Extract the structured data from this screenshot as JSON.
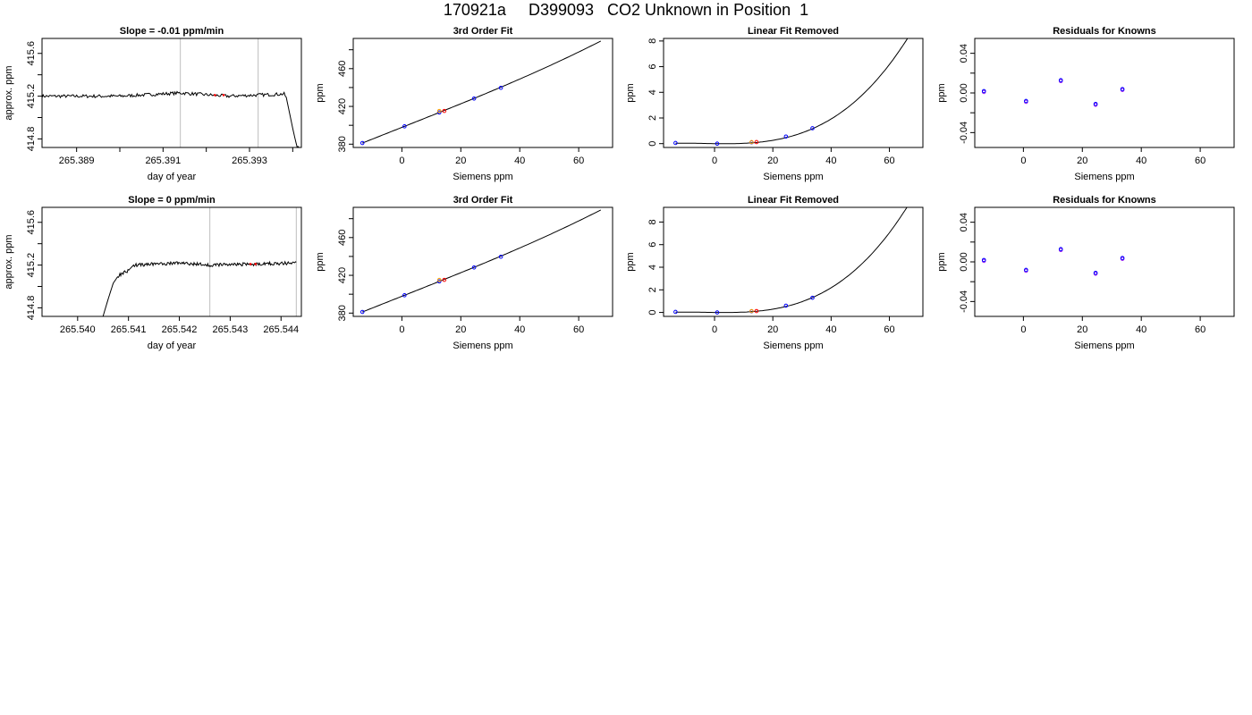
{
  "page_title": "170921a     D399093   CO2 Unknown in Position  1",
  "colors": {
    "line": "#000000",
    "known": "#0000ff",
    "unknown": "#ff0000",
    "unknown_fit": "#ffa500",
    "residual": "#a020f0",
    "marker_line": "#bebebe"
  },
  "chart_data": [
    {
      "type": "line",
      "title": "Slope =  -0.01  ppm/min",
      "xlabel": "day of year",
      "ylabel": "approx. ppm",
      "xlim": [
        265.3882,
        265.3942
      ],
      "ylim": [
        414.72,
        415.74
      ],
      "xticks": [
        265.388,
        265.389,
        265.39,
        265.391,
        265.392,
        265.393,
        265.394
      ],
      "xtick_labels": [
        "",
        "265.389",
        "",
        "265.391",
        "",
        "265.393",
        ""
      ],
      "yticks": [
        414.8,
        415.0,
        415.2,
        415.4,
        415.6
      ],
      "ytick_labels": [
        "414.8",
        "",
        "415.2",
        "",
        "415.6"
      ],
      "vlines": [
        265.3914,
        265.3932
      ],
      "trace": {
        "x_start": 265.3882,
        "x_end": 265.3942,
        "knots": [
          [
            265.3882,
            415.2
          ],
          [
            265.39,
            415.2
          ],
          [
            265.3914,
            415.23
          ],
          [
            265.3925,
            415.2
          ],
          [
            265.3938,
            415.22
          ],
          [
            265.39385,
            415.19
          ],
          [
            265.394,
            414.9
          ],
          [
            265.3941,
            414.72
          ]
        ]
      },
      "highlight_points": [
        [
          265.3922,
          415.21
        ],
        [
          265.3924,
          415.21
        ]
      ]
    },
    {
      "type": "scatter",
      "title": "3rd Order Fit",
      "xlabel": "Siemens ppm",
      "ylabel": "ppm",
      "xlim": [
        -16.5,
        71.5
      ],
      "ylim": [
        376.5,
        492
      ],
      "xticks": [
        0,
        20,
        40,
        60
      ],
      "yticks": [
        380,
        400,
        420,
        440,
        460,
        480
      ],
      "ytick_labels": [
        "380",
        "",
        "420",
        "",
        "460",
        ""
      ],
      "known_points": [
        [
          -13.4,
          381.2
        ],
        [
          0.9,
          398.9
        ],
        [
          12.7,
          413.6
        ],
        [
          24.5,
          428.3
        ],
        [
          33.6,
          439.7
        ]
      ],
      "unknown_points": [
        [
          14.4,
          415.2
        ]
      ],
      "fit": {
        "type": "poly3",
        "coef": [
          397.78,
          1.2375,
          5e-05,
          2.5e-05
        ],
        "x_range": [
          -13.4,
          67.5
        ]
      }
    },
    {
      "type": "scatter",
      "title": "Linear Fit Removed",
      "xlabel": "Siemens ppm",
      "ylabel": "ppm",
      "xlim": [
        -17.5,
        71.5
      ],
      "ylim": [
        -0.3,
        8.2
      ],
      "xticks": [
        0,
        20,
        40,
        60
      ],
      "yticks": [
        0,
        2,
        4,
        6,
        8
      ],
      "known_points": [
        [
          -13.4,
          0.05
        ],
        [
          0.9,
          0.0
        ],
        [
          12.7,
          0.1
        ],
        [
          24.5,
          0.55
        ],
        [
          33.6,
          1.2
        ]
      ],
      "unknown_points": [
        [
          14.4,
          0.12
        ]
      ],
      "fit": {
        "type": "poly3",
        "coef": [
          0.0,
          -0.003,
          0.0003,
          2.44e-05
        ],
        "x_range": [
          -13.4,
          68.0
        ]
      }
    },
    {
      "type": "scatter",
      "title": "Residuals for Knowns",
      "xlabel": "Siemens ppm",
      "ylabel": "ppm",
      "xlim": [
        -16.5,
        71.5
      ],
      "ylim": [
        -0.055,
        0.055
      ],
      "xticks": [
        0,
        20,
        40,
        60
      ],
      "yticks": [
        -0.04,
        -0.02,
        0.0,
        0.02,
        0.04
      ],
      "ytick_labels": [
        "-0.04",
        "",
        "0.00",
        "",
        "0.04"
      ],
      "residual_points": [
        [
          -13.4,
          0.001
        ],
        [
          0.9,
          -0.009
        ],
        [
          12.7,
          0.012
        ],
        [
          24.5,
          -0.012
        ],
        [
          33.6,
          0.003
        ]
      ]
    },
    {
      "type": "line",
      "title": "Slope =  0  ppm/min",
      "xlabel": "day of year",
      "ylabel": "approx. ppm",
      "xlim": [
        265.5393,
        265.5444
      ],
      "ylim": [
        414.72,
        415.74
      ],
      "xticks": [
        265.54,
        265.541,
        265.542,
        265.543,
        265.544
      ],
      "xtick_labels": [
        "265.540",
        "265.541",
        "265.542",
        "265.543",
        "265.544"
      ],
      "yticks": [
        414.8,
        415.0,
        415.2,
        415.4,
        415.6
      ],
      "ytick_labels": [
        "414.8",
        "",
        "415.2",
        "",
        "415.6"
      ],
      "vlines": [
        265.5426,
        265.5443
      ],
      "trace": {
        "x_start": 265.5405,
        "x_end": 265.5443,
        "knots": [
          [
            265.5405,
            414.72
          ],
          [
            265.5406,
            414.88
          ],
          [
            265.5407,
            415.03
          ],
          [
            265.5408,
            415.1
          ],
          [
            265.541,
            415.15
          ],
          [
            265.5411,
            415.2
          ],
          [
            265.542,
            415.22
          ],
          [
            265.5426,
            415.2
          ],
          [
            265.5443,
            415.22
          ]
        ]
      },
      "highlight_points": [
        [
          265.5434,
          415.21
        ],
        [
          265.5435,
          415.21
        ]
      ]
    },
    {
      "type": "scatter",
      "title": "3rd Order Fit",
      "xlabel": "Siemens ppm",
      "ylabel": "ppm",
      "xlim": [
        -16.5,
        71.5
      ],
      "ylim": [
        376.5,
        492
      ],
      "xticks": [
        0,
        20,
        40,
        60
      ],
      "yticks": [
        380,
        400,
        420,
        440,
        460,
        480
      ],
      "ytick_labels": [
        "380",
        "",
        "420",
        "",
        "460",
        ""
      ],
      "known_points": [
        [
          -13.4,
          381.2
        ],
        [
          0.9,
          398.9
        ],
        [
          12.7,
          413.6
        ],
        [
          24.5,
          428.3
        ],
        [
          33.6,
          439.7
        ]
      ],
      "unknown_points": [
        [
          14.4,
          415.2
        ]
      ],
      "fit": {
        "type": "poly3",
        "coef": [
          397.78,
          1.2375,
          5e-05,
          2.5e-05
        ],
        "x_range": [
          -13.4,
          67.5
        ]
      }
    },
    {
      "type": "scatter",
      "title": "Linear Fit Removed",
      "xlabel": "Siemens ppm",
      "ylabel": "ppm",
      "xlim": [
        -17.5,
        71.5
      ],
      "ylim": [
        -0.35,
        9.3
      ],
      "xticks": [
        0,
        20,
        40,
        60
      ],
      "yticks": [
        0,
        2,
        4,
        6,
        8
      ],
      "known_points": [
        [
          -13.4,
          0.05
        ],
        [
          0.9,
          0.0
        ],
        [
          12.7,
          0.1
        ],
        [
          24.5,
          0.6
        ],
        [
          33.6,
          1.3
        ]
      ],
      "unknown_points": [
        [
          14.4,
          0.12
        ]
      ],
      "fit": {
        "type": "poly3",
        "coef": [
          0.0,
          -0.003,
          0.0003,
          2.85e-05
        ],
        "x_range": [
          -13.4,
          68.0
        ]
      }
    },
    {
      "type": "scatter",
      "title": "Residuals for Knowns",
      "xlabel": "Siemens ppm",
      "ylabel": "ppm",
      "xlim": [
        -16.5,
        71.5
      ],
      "ylim": [
        -0.055,
        0.055
      ],
      "xticks": [
        0,
        20,
        40,
        60
      ],
      "yticks": [
        -0.04,
        -0.02,
        0.0,
        0.02,
        0.04
      ],
      "ytick_labels": [
        "-0.04",
        "",
        "0.00",
        "",
        "0.04"
      ],
      "residual_points": [
        [
          -13.4,
          0.001
        ],
        [
          0.9,
          -0.009
        ],
        [
          12.7,
          0.012
        ],
        [
          24.5,
          -0.012
        ],
        [
          33.6,
          0.003
        ]
      ]
    }
  ]
}
